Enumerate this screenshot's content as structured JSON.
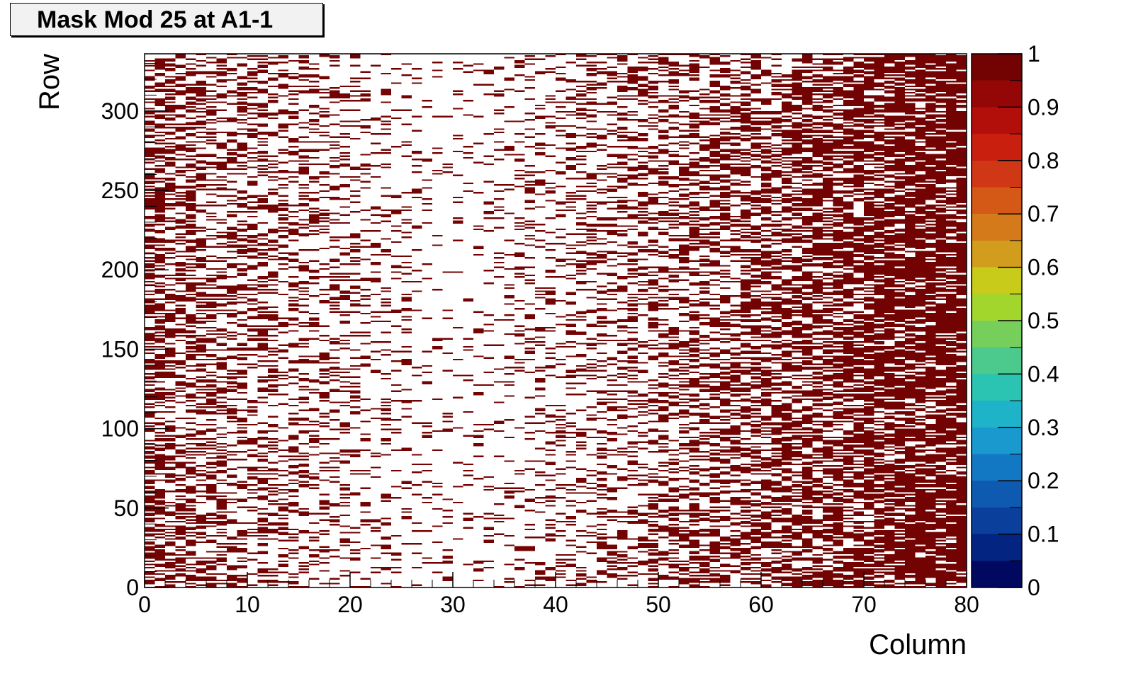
{
  "chart_data": {
    "type": "heatmap",
    "title": "Mask Mod 25 at A1-1",
    "xlabel": "Column",
    "ylabel": "Row",
    "xlim": [
      0,
      80
    ],
    "ylim": [
      0,
      336
    ],
    "n_columns": 80,
    "n_rows": 336,
    "x_ticks": [
      "0",
      "10",
      "20",
      "30",
      "40",
      "50",
      "60",
      "70",
      "80"
    ],
    "y_ticks": [
      "0",
      "50",
      "100",
      "150",
      "200",
      "250",
      "300"
    ],
    "z_range": [
      0,
      1
    ],
    "z_ticks": [
      "0",
      "0.1",
      "0.2",
      "0.3",
      "0.4",
      "0.5",
      "0.6",
      "0.7",
      "0.8",
      "0.9",
      "1"
    ],
    "values": "binary mask: each pixel is 0 (white) or 1 (dark red); density of masked pixels increases toward higher columns, lowest around columns 25–35",
    "palette": [
      "#00095f",
      "#032480",
      "#0a3f9c",
      "#0e5ab0",
      "#1378c4",
      "#1a99cf",
      "#1eb3c8",
      "#2bc3b1",
      "#4cc98c",
      "#76cf5a",
      "#a2d62c",
      "#c8cb1a",
      "#d29d1d",
      "#d47a1b",
      "#d45816",
      "#d03714",
      "#c81f0f",
      "#b30f0a",
      "#950706",
      "#730303"
    ],
    "mask_color": "#730303"
  }
}
